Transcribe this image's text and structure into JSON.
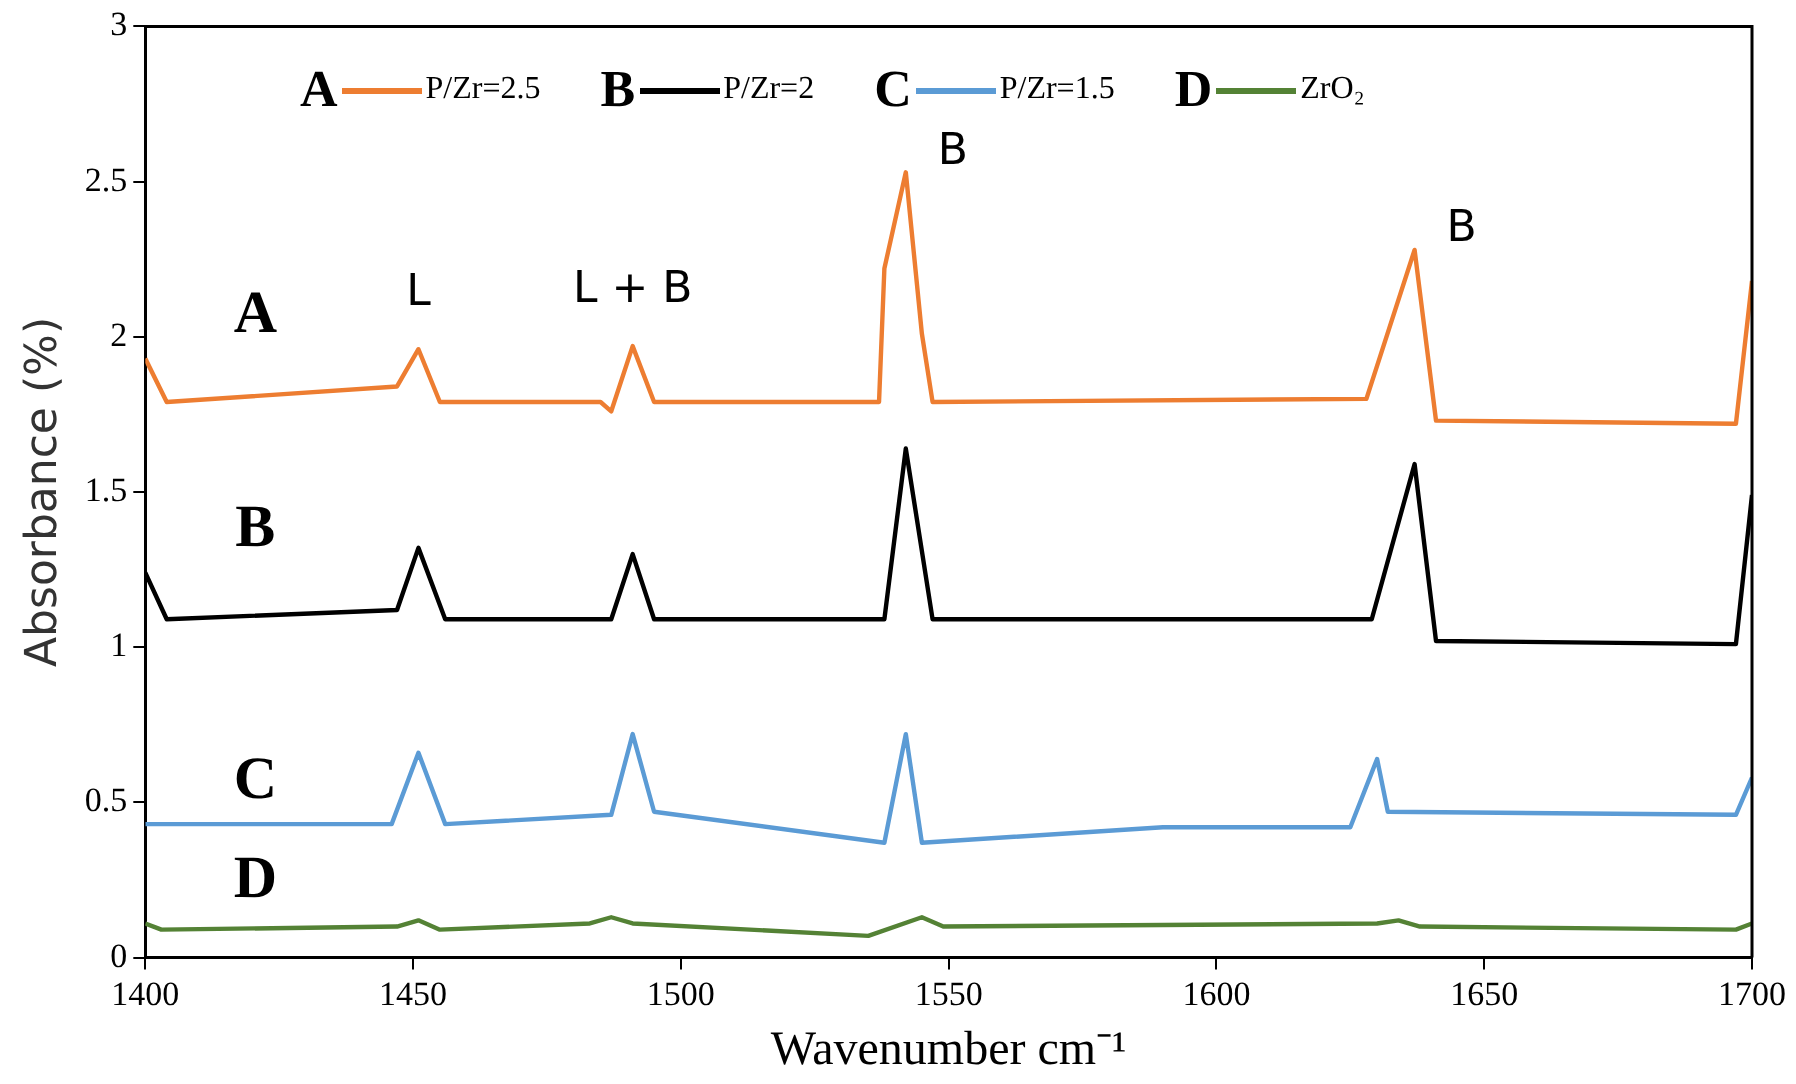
{
  "chart_data": {
    "type": "line",
    "xlabel": "Wavenumber cm⁻¹",
    "ylabel": "Absorbance (%)",
    "xlim": [
      1400,
      1700
    ],
    "xticks": [
      1400,
      1450,
      1500,
      1550,
      1600,
      1650,
      1700
    ],
    "ylim": [
      0,
      3
    ],
    "yticks": [
      0,
      0.5,
      1,
      1.5,
      2,
      2.5,
      3
    ],
    "grid": false,
    "legend": "top",
    "marker": "none",
    "line_style": "solid",
    "series": [
      {
        "name": "P/Zr=2.5",
        "color": "#ed7d31",
        "x": [
          1400,
          1404,
          1447,
          1451,
          1455,
          1485,
          1487,
          1491,
          1495,
          1537,
          1538,
          1542,
          1545,
          1547,
          1628,
          1637,
          1641,
          1697,
          1700
        ],
        "values": [
          1.93,
          1.79,
          1.84,
          1.96,
          1.79,
          1.79,
          1.76,
          1.97,
          1.79,
          1.79,
          2.22,
          2.53,
          2.01,
          1.79,
          1.8,
          2.28,
          1.73,
          1.72,
          2.18
        ]
      },
      {
        "name": "P/Zr=2",
        "color": "#000000",
        "x": [
          1400,
          1404,
          1447,
          1451,
          1456,
          1487,
          1491,
          1495,
          1538,
          1542,
          1547,
          1629,
          1637,
          1641,
          1697,
          1700
        ],
        "values": [
          1.24,
          1.09,
          1.12,
          1.32,
          1.09,
          1.09,
          1.3,
          1.09,
          1.09,
          1.64,
          1.09,
          1.09,
          1.59,
          1.02,
          1.01,
          1.49
        ]
      },
      {
        "name": "P/Zr=1.5",
        "color": "#5b9bd5",
        "x": [
          1400,
          1446,
          1451,
          1456,
          1487,
          1491,
          1495,
          1538,
          1542,
          1545,
          1590,
          1625,
          1630,
          1632,
          1697,
          1700
        ],
        "values": [
          0.43,
          0.43,
          0.66,
          0.43,
          0.46,
          0.72,
          0.47,
          0.37,
          0.72,
          0.37,
          0.42,
          0.42,
          0.64,
          0.47,
          0.46,
          0.58
        ]
      },
      {
        "name": "ZrO₂",
        "color": "#548235",
        "x": [
          1400,
          1403,
          1447,
          1451,
          1455,
          1483,
          1487,
          1491,
          1535,
          1545,
          1549,
          1630,
          1634,
          1638,
          1697,
          1700
        ],
        "values": [
          0.11,
          0.09,
          0.1,
          0.12,
          0.09,
          0.11,
          0.13,
          0.11,
          0.07,
          0.13,
          0.1,
          0.11,
          0.12,
          0.1,
          0.09,
          0.11
        ]
      }
    ],
    "annotations": [
      "A",
      "B",
      "C",
      "D",
      "L",
      "L + B",
      "B",
      "B"
    ]
  }
}
